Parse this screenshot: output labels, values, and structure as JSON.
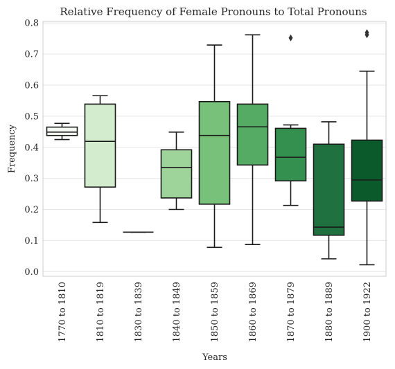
{
  "chart_data": {
    "type": "box",
    "title": "Relative Frequency of Female Pronouns to Total Pronouns",
    "xlabel": "Years",
    "ylabel": "Frequency",
    "ylim": [
      -0.015,
      0.805
    ],
    "yticks": [
      0.0,
      0.1,
      0.2,
      0.3,
      0.4,
      0.5,
      0.6,
      0.7,
      0.8
    ],
    "ytick_labels": [
      "0.0",
      "0.1",
      "0.2",
      "0.3",
      "0.4",
      "0.5",
      "0.6",
      "0.7",
      "0.8"
    ],
    "grid": "horizontal",
    "categories": [
      "1770 to 1810",
      "1810 to 1819",
      "1830 to 1839",
      "1840 to 1849",
      "1850 to 1859",
      "1860 to 1869",
      "1870 to 1879",
      "1880 to 1889",
      "1900 to 1922"
    ],
    "boxes": [
      {
        "min": 0.425,
        "q1": 0.438,
        "median": 0.449,
        "q3": 0.465,
        "max": 0.477,
        "outliers": [],
        "color": "#f4faf2"
      },
      {
        "min": 0.158,
        "q1": 0.272,
        "median": 0.419,
        "q3": 0.539,
        "max": 0.566,
        "outliers": [],
        "color": "#d3eccd"
      },
      {
        "min": 0.127,
        "q1": 0.127,
        "median": 0.127,
        "q3": 0.127,
        "max": 0.127,
        "outliers": [],
        "color": "#b8e2b1"
      },
      {
        "min": 0.2,
        "q1": 0.237,
        "median": 0.335,
        "q3": 0.392,
        "max": 0.449,
        "outliers": [],
        "color": "#9ed399"
      },
      {
        "min": 0.078,
        "q1": 0.217,
        "median": 0.438,
        "q3": 0.547,
        "max": 0.729,
        "outliers": [],
        "color": "#78c17a"
      },
      {
        "min": 0.087,
        "q1": 0.343,
        "median": 0.466,
        "q3": 0.539,
        "max": 0.762,
        "outliers": [],
        "color": "#55ab64"
      },
      {
        "min": 0.213,
        "q1": 0.292,
        "median": 0.368,
        "q3": 0.461,
        "max": 0.472,
        "outliers": [
          0.752
        ],
        "color": "#34904f"
      },
      {
        "min": 0.041,
        "q1": 0.117,
        "median": 0.143,
        "q3": 0.41,
        "max": 0.482,
        "outliers": [],
        "color": "#1f7240"
      },
      {
        "min": 0.022,
        "q1": 0.227,
        "median": 0.295,
        "q3": 0.423,
        "max": 0.645,
        "outliers": [
          0.762,
          0.769
        ],
        "color": "#0a5a2b"
      }
    ]
  }
}
